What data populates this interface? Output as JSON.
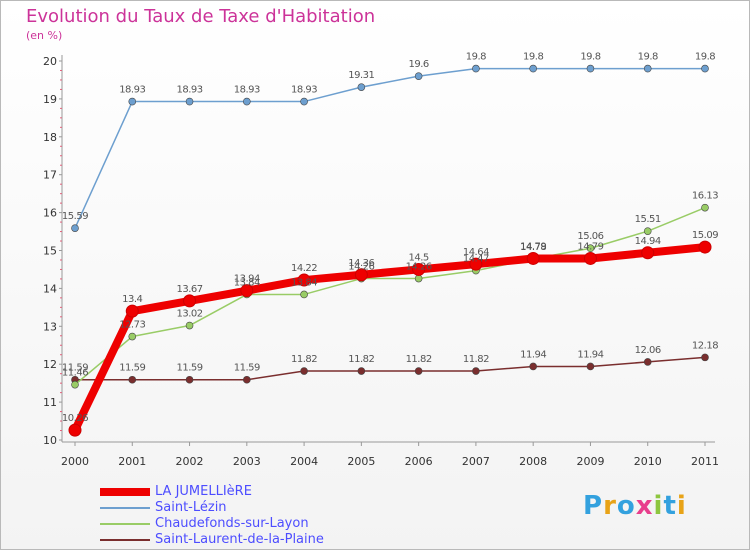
{
  "header": {
    "title": "Evolution du Taux de Taxe d'Habitation",
    "unit": "(en %)"
  },
  "logo": {
    "text": [
      "P",
      "r",
      "o",
      "x",
      "i",
      "t",
      "i"
    ],
    "colors": [
      "#33a1de",
      "#e8a317",
      "#33a1de",
      "#e83e8c",
      "#8dc63f",
      "#33a1de",
      "#e8a317"
    ]
  },
  "chart_data": {
    "type": "line",
    "x": [
      "2000",
      "2001",
      "2002",
      "2003",
      "2004",
      "2005",
      "2006",
      "2007",
      "2008",
      "2009",
      "2010",
      "2011"
    ],
    "ylim": [
      10,
      20
    ],
    "yticks": [
      "10",
      "11",
      "12",
      "13",
      "14",
      "15",
      "16",
      "17",
      "18",
      "19",
      "20"
    ],
    "grid": false,
    "legend_position": "bottom-left",
    "series": [
      {
        "name": "LA JUMELLIèRE",
        "color": "#ee0000",
        "values": [
          10.26,
          13.4,
          13.67,
          13.94,
          14.22,
          14.36,
          14.5,
          14.64,
          14.79,
          14.79,
          14.94,
          15.09
        ],
        "labels": [
          "10.26",
          "13.4",
          "13.67",
          "13.94",
          "14.22",
          "14.36",
          "14.5",
          "14.64",
          "14.79",
          "14.79",
          "14.94",
          "15.09"
        ]
      },
      {
        "name": "Saint-Lézin",
        "color": "#6d9fcf",
        "values": [
          15.59,
          18.93,
          18.93,
          18.93,
          18.93,
          19.31,
          19.6,
          19.8,
          19.8,
          19.8,
          19.8,
          19.8
        ],
        "labels": [
          "15.59",
          "18.93",
          "18.93",
          "18.93",
          "18.93",
          "19.31",
          "19.6",
          "19.8",
          "19.8",
          "19.8",
          "19.8",
          "19.8"
        ]
      },
      {
        "name": "Chaudefonds-sur-Layon",
        "color": "#99cc66",
        "values": [
          11.46,
          12.73,
          13.02,
          13.84,
          13.84,
          14.26,
          14.26,
          14.47,
          14.78,
          15.06,
          15.51,
          16.13
        ],
        "labels": [
          "11.46",
          "12.73",
          "13.02",
          "13.84",
          "13.84",
          "14.26",
          "14.26",
          "14.47",
          "14.78",
          "15.06",
          "15.51",
          "16.13"
        ]
      },
      {
        "name": "Saint-Laurent-de-la-Plaine",
        "color": "#7a2e2e",
        "values": [
          11.59,
          11.59,
          11.59,
          11.59,
          11.82,
          11.82,
          11.82,
          11.82,
          11.94,
          11.94,
          12.06,
          12.18
        ],
        "labels": [
          "11.59",
          "11.59",
          "11.59",
          "11.59",
          "11.82",
          "11.82",
          "11.82",
          "11.82",
          "11.94",
          "11.94",
          "12.06",
          "12.18"
        ]
      }
    ]
  }
}
